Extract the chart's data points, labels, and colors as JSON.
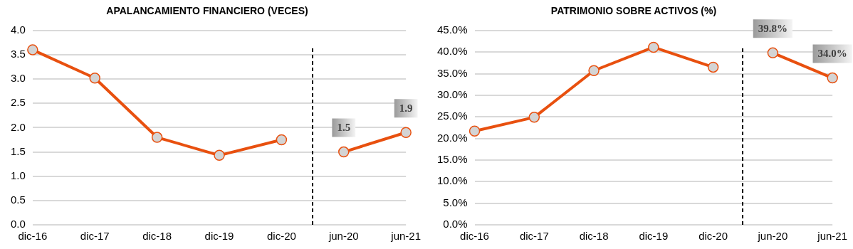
{
  "chart_data": [
    {
      "type": "line",
      "title": "APALANCAMIENTO FINANCIERO (VECES)",
      "categories": [
        "dic-16",
        "dic-17",
        "dic-18",
        "dic-19",
        "dic-20",
        "jun-20",
        "jun-21"
      ],
      "series": [
        {
          "color": "#e8500f",
          "values": [
            3.6,
            3.02,
            1.8,
            1.43,
            1.75,
            null,
            null
          ]
        },
        {
          "color": "#e8500f",
          "values": [
            null,
            null,
            null,
            null,
            null,
            1.5,
            1.9
          ],
          "value_labels": [
            null,
            null,
            null,
            null,
            null,
            "1.5",
            "1.9"
          ]
        }
      ],
      "ylim": [
        0,
        4
      ],
      "yticks": [
        {
          "value": 0,
          "label": "0.0"
        },
        {
          "value": 0.5,
          "label": "0.5"
        },
        {
          "value": 1,
          "label": "1.0"
        },
        {
          "value": 1.5,
          "label": "1.5"
        },
        {
          "value": 2,
          "label": "2.0"
        },
        {
          "value": 2.5,
          "label": "2.5"
        },
        {
          "value": 3,
          "label": "3.0"
        },
        {
          "value": 3.5,
          "label": "3.5"
        },
        {
          "value": 4,
          "label": "4.0"
        }
      ],
      "grid": "y",
      "legend": false,
      "marker": "circle",
      "line_style": "solid"
    },
    {
      "type": "line",
      "title": "PATRIMONIO SOBRE ACTIVOS (%)",
      "categories": [
        "dic-16",
        "dic-17",
        "dic-18",
        "dic-19",
        "dic-20",
        "jun-20",
        "jun-21"
      ],
      "series": [
        {
          "color": "#e8500f",
          "values": [
            21.7,
            24.9,
            35.7,
            41.1,
            36.5,
            null,
            null
          ]
        },
        {
          "color": "#e8500f",
          "values": [
            null,
            null,
            null,
            null,
            null,
            39.8,
            34.0
          ],
          "value_labels": [
            null,
            null,
            null,
            null,
            null,
            "39.8%",
            "34.0%"
          ]
        }
      ],
      "ylim": [
        0,
        45
      ],
      "yticks": [
        {
          "value": 0,
          "label": "0.0%"
        },
        {
          "value": 5,
          "label": "5.0%"
        },
        {
          "value": 10,
          "label": "10.0%"
        },
        {
          "value": 15,
          "label": "15.0%"
        },
        {
          "value": 20,
          "label": "20.0%"
        },
        {
          "value": 25,
          "label": "25.0%"
        },
        {
          "value": 30,
          "label": "30.0%"
        },
        {
          "value": 35,
          "label": "35.0%"
        },
        {
          "value": 40,
          "label": "40.0%"
        },
        {
          "value": 45,
          "label": "45.0%"
        }
      ],
      "grid": "y",
      "legend": false,
      "marker": "circle",
      "line_style": "solid"
    }
  ]
}
